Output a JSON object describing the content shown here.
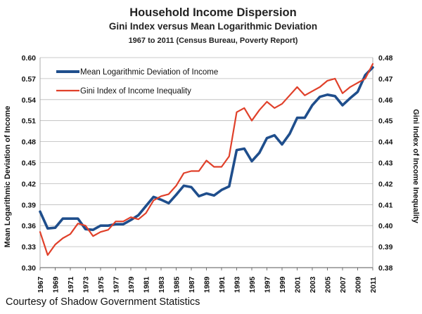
{
  "chart_data": {
    "type": "line",
    "title": "Household Income Dispersion",
    "subtitle": "Gini Index versus Mean Logarithmic Deviation",
    "subtitle2": "1967 to 2011 (Census Bureau, Poverty Report)",
    "ylabel_left": "Mean Logarithmic Deviation of Income",
    "ylabel_right": "Gini Index of Income Inequality",
    "ylim_left": [
      0.3,
      0.6
    ],
    "ylim_right": [
      0.38,
      0.48
    ],
    "yticks_left": [
      "0.30",
      "0.33",
      "0.36",
      "0.39",
      "0.42",
      "0.45",
      "0.48",
      "0.51",
      "0.54",
      "0.57",
      "0.60"
    ],
    "yticks_right": [
      "0.38",
      "0.39",
      "0.40",
      "0.41",
      "0.42",
      "0.43",
      "0.44",
      "0.45",
      "0.46",
      "0.47",
      "0.48"
    ],
    "xticks": [
      "1967",
      "1969",
      "1971",
      "1973",
      "1975",
      "1977",
      "1979",
      "1981",
      "1983",
      "1985",
      "1987",
      "1989",
      "1991",
      "1993",
      "1995",
      "1997",
      "1999",
      "2001",
      "2003",
      "2005",
      "2007",
      "2009",
      "2011"
    ],
    "grid": "horizontal",
    "legend_position": "top-left",
    "x": [
      1967,
      1968,
      1969,
      1970,
      1971,
      1972,
      1973,
      1974,
      1975,
      1976,
      1977,
      1978,
      1979,
      1980,
      1981,
      1982,
      1983,
      1984,
      1985,
      1986,
      1987,
      1988,
      1989,
      1990,
      1991,
      1992,
      1993,
      1994,
      1995,
      1996,
      1997,
      1998,
      1999,
      2000,
      2001,
      2002,
      2003,
      2004,
      2005,
      2006,
      2007,
      2008,
      2009,
      2010,
      2011
    ],
    "series": [
      {
        "name": "Mean Logarithmic Deviation of Income",
        "axis": "left",
        "color": "#1f4e8c",
        "values": [
          0.38,
          0.356,
          0.357,
          0.37,
          0.37,
          0.37,
          0.355,
          0.354,
          0.36,
          0.36,
          0.362,
          0.362,
          0.368,
          0.375,
          0.388,
          0.401,
          0.397,
          0.392,
          0.404,
          0.417,
          0.415,
          0.402,
          0.406,
          0.403,
          0.411,
          0.416,
          0.468,
          0.47,
          0.452,
          0.464,
          0.485,
          0.489,
          0.476,
          0.491,
          0.514,
          0.514,
          0.532,
          0.544,
          0.547,
          0.545,
          0.532,
          0.542,
          0.551,
          0.575,
          0.586
        ]
      },
      {
        "name": "Gini Index of Income Inequality",
        "axis": "right",
        "color": "#e0402a",
        "values": [
          0.397,
          0.386,
          0.391,
          0.394,
          0.396,
          0.401,
          0.4,
          0.395,
          0.397,
          0.398,
          0.402,
          0.402,
          0.404,
          0.403,
          0.406,
          0.412,
          0.414,
          0.415,
          0.419,
          0.425,
          0.426,
          0.426,
          0.431,
          0.428,
          0.428,
          0.433,
          0.454,
          0.456,
          0.45,
          0.455,
          0.459,
          0.456,
          0.458,
          0.462,
          0.466,
          0.462,
          0.464,
          0.466,
          0.469,
          0.47,
          0.463,
          0.466,
          0.468,
          0.47,
          0.477
        ]
      }
    ]
  },
  "credit": "Courtesy of Shadow Government Statistics"
}
